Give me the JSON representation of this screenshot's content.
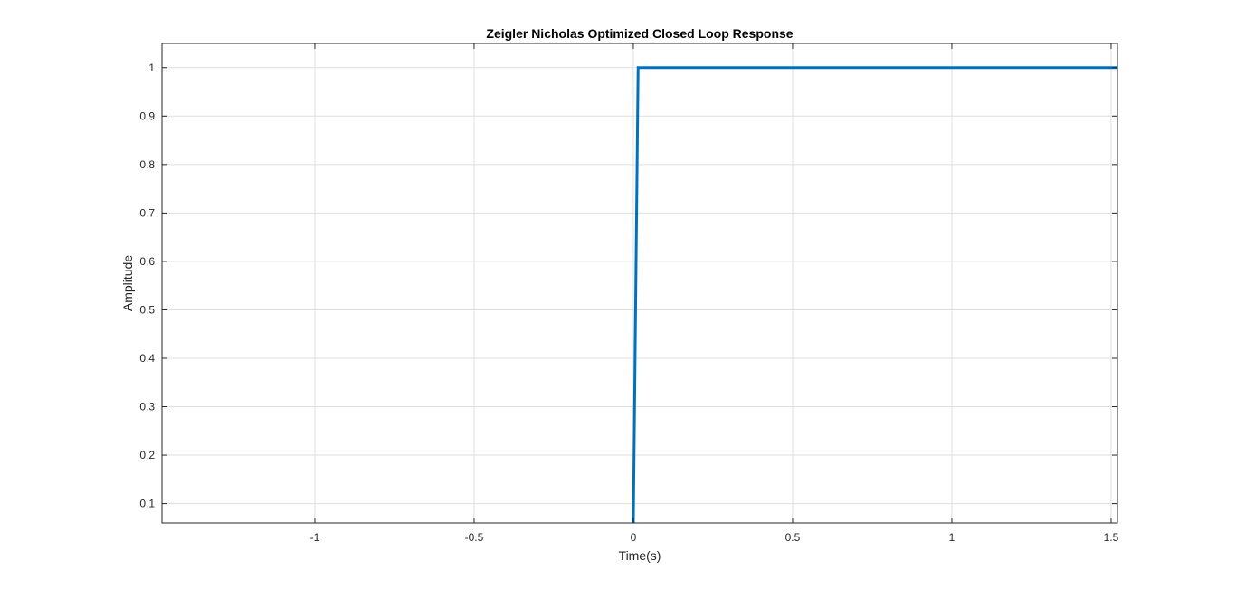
{
  "chart_data": {
    "type": "line",
    "title": "Zeigler Nicholas Optimized Closed Loop Response",
    "xlabel": "Time(s)",
    "ylabel": "Amplitude",
    "xlim": [
      -1.48,
      1.52
    ],
    "ylim": [
      0.06,
      1.05
    ],
    "grid": true,
    "xticks": [
      -1,
      -0.5,
      0,
      0.5,
      1,
      1.5
    ],
    "xtick_labels": [
      "-1",
      "-0.5",
      "0",
      "0.5",
      "1",
      "1.5"
    ],
    "yticks": [
      0.1,
      0.2,
      0.3,
      0.4,
      0.5,
      0.6,
      0.7,
      0.8,
      0.9,
      1
    ],
    "ytick_labels": [
      "0.1",
      "0.2",
      "0.3",
      "0.4",
      "0.5",
      "0.6",
      "0.7",
      "0.8",
      "0.9",
      "1"
    ],
    "series": [
      {
        "color": "#0072BD",
        "x": [
          0.0,
          0.015,
          1.52
        ],
        "y": [
          0.06,
          1.0,
          1.0
        ]
      }
    ]
  }
}
